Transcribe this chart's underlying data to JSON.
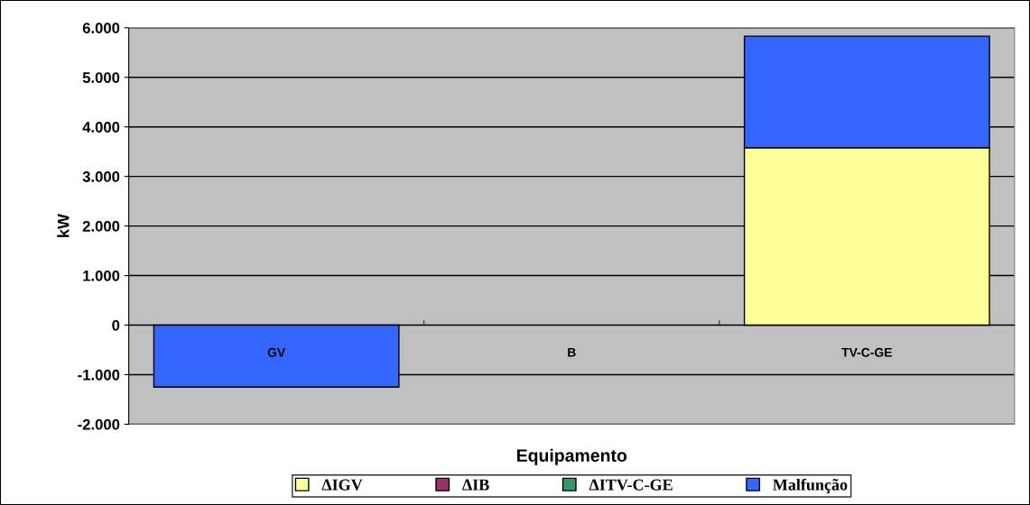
{
  "chart_data": {
    "type": "bar",
    "stacked": true,
    "xlabel": "Equipamento",
    "ylabel": "kW",
    "categories": [
      "GV",
      "B",
      "TV-C-GE"
    ],
    "series": [
      {
        "name": "ΔIGV",
        "color": "#ffff99",
        "values": [
          null,
          null,
          3580
        ]
      },
      {
        "name": "ΔIB",
        "color": "#993366",
        "values": [
          null,
          null,
          null
        ]
      },
      {
        "name": "ΔITV-C-GE",
        "color": "#339966",
        "values": [
          null,
          null,
          null
        ]
      },
      {
        "name": "Malfunção",
        "color": "#3366ff",
        "values": [
          -1250,
          null,
          2250
        ]
      }
    ],
    "ylim": [
      -2000,
      6000
    ],
    "yticks": [
      {
        "value": -2000,
        "label": "-2.000"
      },
      {
        "value": -1000,
        "label": "-1.000"
      },
      0,
      {
        "value": 1000,
        "label": "1.000"
      },
      {
        "value": 2000,
        "label": "2.000"
      },
      {
        "value": 3000,
        "label": "3.000"
      },
      {
        "value": 4000,
        "label": "4.000"
      },
      {
        "value": 5000,
        "label": "5.000"
      },
      {
        "value": 6000,
        "label": "6.000"
      }
    ],
    "grid": "y",
    "legend": "bottom"
  }
}
